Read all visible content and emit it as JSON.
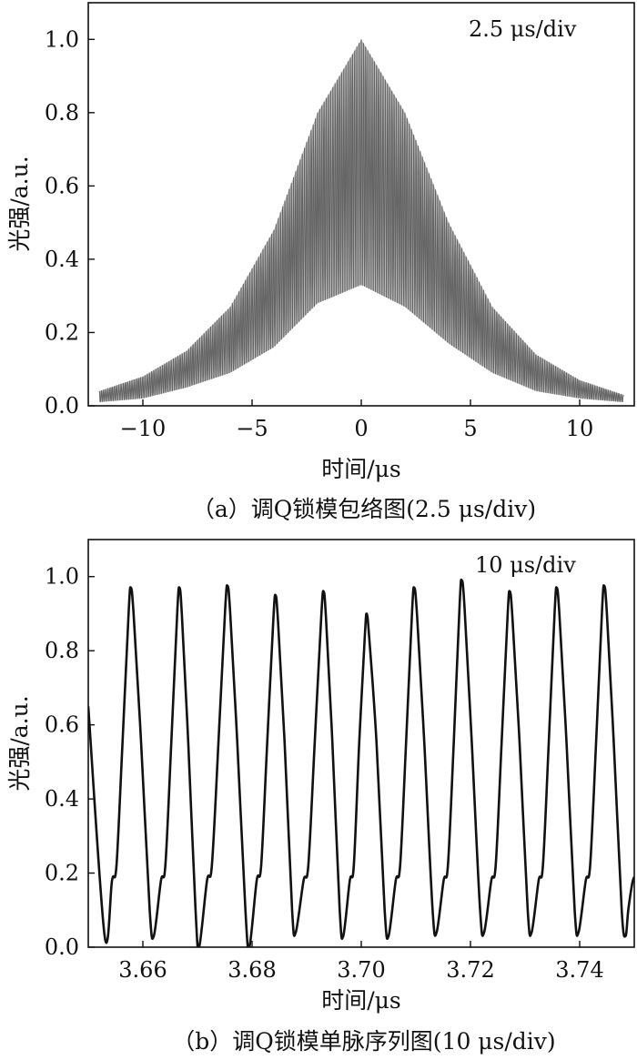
{
  "chart_data": [
    {
      "type": "line",
      "panel": "a",
      "annotation": "2.5 μs/div",
      "xlabel": "时间/μs",
      "ylabel": "光强/a.u.",
      "caption": "（a）调Q锁模包络图(2.5 μs/div)",
      "xlim": [
        -12.5,
        12.5
      ],
      "ylim": [
        0,
        1.1
      ],
      "x_ticks": [
        -10,
        -5,
        0,
        5,
        10
      ],
      "x_tick_labels": [
        "−10",
        "−5",
        "0",
        "5",
        "10"
      ],
      "y_ticks": [
        0,
        0.2,
        0.4,
        0.6,
        0.8,
        1.0
      ],
      "y_tick_labels": [
        "0.0",
        "0.2",
        "0.4",
        "0.6",
        "0.8",
        "1.0"
      ],
      "envelope": {
        "x": [
          -12,
          -10,
          -8,
          -6,
          -4,
          -2,
          0,
          2,
          4,
          6,
          8,
          10,
          12
        ],
        "upper": [
          0.04,
          0.08,
          0.15,
          0.27,
          0.48,
          0.8,
          1.0,
          0.8,
          0.5,
          0.27,
          0.14,
          0.07,
          0.03
        ],
        "lower": [
          0.01,
          0.02,
          0.05,
          0.09,
          0.16,
          0.28,
          0.33,
          0.27,
          0.17,
          0.09,
          0.04,
          0.02,
          0.01
        ]
      },
      "colors": {
        "trace": "#555555",
        "envelope": "#8a8a8a"
      }
    },
    {
      "type": "line",
      "panel": "b",
      "annotation": "10 μs/div",
      "xlabel": "时间/μs",
      "ylabel": "光强/a.u.",
      "caption": "（b）调Q锁模单脉序列图(10 μs/div)",
      "xlim": [
        3.65,
        3.75
      ],
      "ylim": [
        0,
        1.1
      ],
      "x_ticks": [
        3.66,
        3.68,
        3.7,
        3.72,
        3.74
      ],
      "x_tick_labels": [
        "3.66",
        "3.68",
        "3.70",
        "3.72",
        "3.74"
      ],
      "y_ticks": [
        0,
        0.2,
        0.4,
        0.6,
        0.8,
        1.0
      ],
      "y_tick_labels": [
        "0.0",
        "0.2",
        "0.4",
        "0.6",
        "0.8",
        "1.0"
      ],
      "pulse_peaks_x": [
        3.6578,
        3.6667,
        3.6755,
        3.6843,
        3.6931,
        3.701,
        3.7097,
        3.7184,
        3.7272,
        3.7358,
        3.7445
      ],
      "pulse_peaks_y": [
        0.97,
        0.97,
        0.975,
        0.95,
        0.96,
        0.9,
        0.97,
        0.99,
        0.96,
        0.97,
        0.975
      ],
      "pulse_minima_x": [
        3.653,
        3.662,
        3.6703,
        3.6795,
        3.688,
        3.6967,
        3.705,
        3.7138,
        3.7225,
        3.7312,
        3.7398,
        3.7484
      ],
      "pulse_minima_y": [
        0.03,
        0.03,
        0.0,
        0.0,
        0.04,
        0.03,
        0.03,
        0.04,
        0.04,
        0.04,
        0.04,
        0.03
      ],
      "colors": {
        "trace": "#111111"
      }
    }
  ]
}
